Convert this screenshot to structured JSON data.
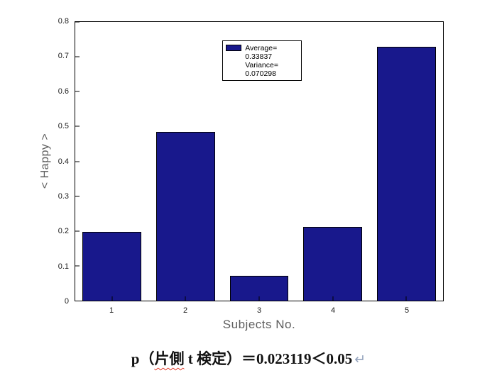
{
  "chart_data": {
    "type": "bar",
    "categories": [
      "1",
      "2",
      "3",
      "4",
      "5"
    ],
    "values": [
      0.197,
      0.485,
      0.072,
      0.212,
      0.728
    ],
    "title": "",
    "xlabel": "Subjects No.",
    "ylabel": "< Happy >",
    "ylim": [
      0,
      0.8
    ],
    "yticks": [
      "0",
      "0.1",
      "0.2",
      "0.3",
      "0.4",
      "0.5",
      "0.6",
      "0.7",
      "0.8"
    ],
    "grid": "off",
    "legend_position": "upper-center-inside",
    "bar_color": "#18188C",
    "legend": {
      "average_label": "Average=",
      "average_value": "0.33837",
      "variance_label": "Variance=",
      "variance_value": "0.070298"
    }
  },
  "caption": {
    "part1": "p（",
    "part2": "片側",
    "part3": " t 検定）＝0.023119＜0.05",
    "return_mark": "↵"
  }
}
